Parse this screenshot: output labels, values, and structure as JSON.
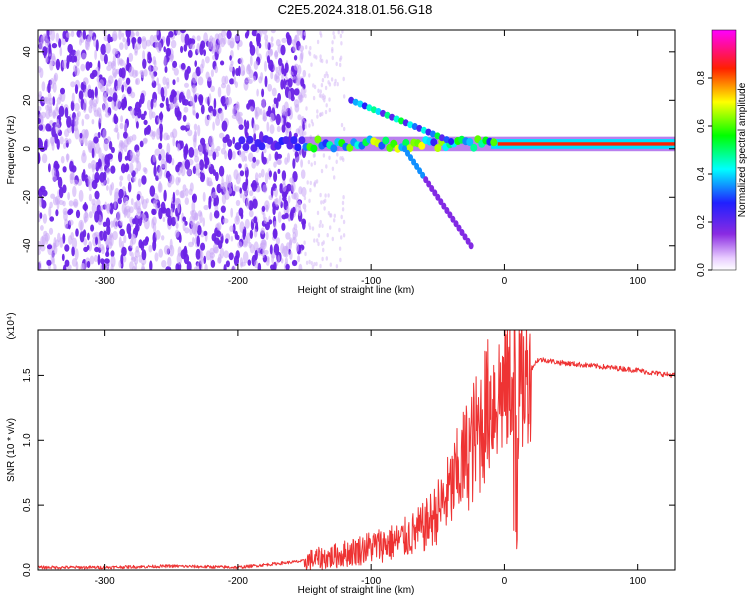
{
  "title": "C2E5.2024.318.01.56.G18",
  "colors": {
    "snr_line": "#ee3333",
    "scatter_dot": "#6a22e6",
    "axis": "#000000"
  },
  "chart_data": [
    {
      "type": "heatmap",
      "xlabel": "Height of straight line (km)",
      "ylabel": "Frequency (Hz)",
      "xlim": [
        -350,
        128
      ],
      "ylim": [
        -50,
        49
      ],
      "xticks": [
        -300,
        -200,
        -100,
        0,
        100
      ],
      "xtick_labels": [
        "-300",
        "-200",
        "-100",
        "0",
        "100"
      ],
      "yticks": [
        -40,
        -20,
        0,
        20,
        40
      ],
      "ytick_labels": [
        "-40",
        "-20",
        "0",
        "20",
        "40"
      ],
      "colorbar": {
        "label": "Normalized spectral amplitude",
        "range": [
          0,
          1
        ],
        "ticks": [
          0,
          0.2,
          0.4,
          0.6,
          0.8
        ],
        "tick_labels": [
          "0.0",
          "0.2",
          "0.4",
          "0.6",
          "0.8"
        ],
        "colormap": "rainbow (magenta-blue-cyan-green-yellow-red-magenta)"
      },
      "features": {
        "noise_region_x": [
          -350,
          -150
        ],
        "main_band_frequency_hz": 2,
        "upper_branch": {
          "x": [
            -115,
            -40
          ],
          "y": [
            20,
            3
          ]
        },
        "lower_branch": {
          "x": [
            -75,
            -25
          ],
          "y": [
            0,
            -40
          ]
        }
      }
    },
    {
      "type": "line",
      "xlabel": "Height of straight line (km)",
      "ylabel": "SNR (10 * v/v)",
      "y_multiplier": "(x10⁴)",
      "xlim": [
        -350,
        128
      ],
      "ylim": [
        0,
        1.85
      ],
      "xticks": [
        -300,
        -200,
        -100,
        0,
        100
      ],
      "xtick_labels": [
        "-300",
        "-200",
        "-100",
        "0",
        "100"
      ],
      "yticks": [
        0,
        0.5,
        1.0,
        1.5
      ],
      "ytick_labels": [
        "0.0",
        "0.5",
        "1.0",
        "1.5"
      ],
      "series": [
        {
          "x": [
            -350,
            -300,
            -250,
            -200,
            -170,
            -150,
            -130,
            -110,
            -100,
            -90,
            -80,
            -70,
            -60,
            -50,
            -40,
            -30,
            -20,
            -15,
            -10,
            -5,
            0,
            5,
            8,
            10,
            15,
            20,
            25,
            30,
            40,
            60,
            80,
            100,
            110,
            128
          ],
          "y": [
            0.02,
            0.02,
            0.03,
            0.02,
            0.05,
            0.07,
            0.1,
            0.15,
            0.18,
            0.2,
            0.22,
            0.27,
            0.33,
            0.45,
            0.62,
            0.85,
            1.05,
            1.2,
            1.3,
            1.35,
            1.4,
            1.45,
            1.75,
            1.35,
            1.45,
            1.55,
            1.62,
            1.62,
            1.6,
            1.58,
            1.56,
            1.54,
            1.52,
            1.5
          ]
        }
      ]
    }
  ]
}
